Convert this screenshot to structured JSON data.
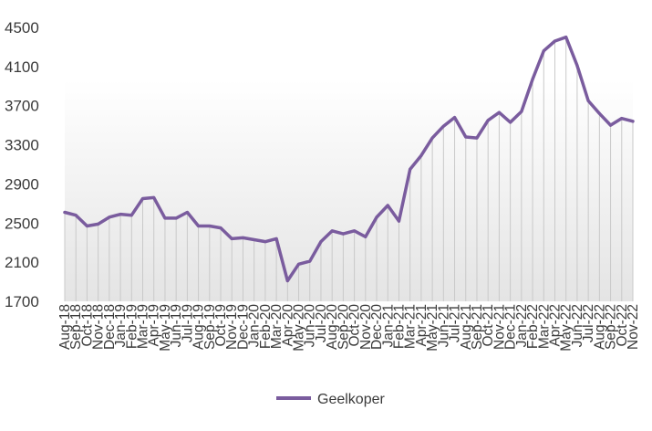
{
  "chart_data": {
    "type": "line",
    "title": "",
    "xlabel": "",
    "ylabel": "",
    "ylim": [
      1700,
      4500
    ],
    "yticks": [
      1700,
      2100,
      2500,
      2900,
      3300,
      3700,
      4100,
      4500
    ],
    "grid": "vertical drop lines from each point; background gradient",
    "legend": "bottom-center",
    "categories": [
      "Aug-18",
      "Sep-18",
      "Oct-18",
      "Nov-18",
      "Dec-18",
      "Jan-19",
      "Feb-19",
      "Mar-19",
      "Apr-19",
      "May-19",
      "Jun-19",
      "Jul-19",
      "Aug-19",
      "Sep-19",
      "Oct-19",
      "Nov-19",
      "Dec-19",
      "Jan-20",
      "Feb-20",
      "Mar-20",
      "Apr-20",
      "May-20",
      "Jun-20",
      "Jul-20",
      "Aug-20",
      "Sep-20",
      "Oct-20",
      "Nov-20",
      "Dec-20",
      "Jan-21",
      "Feb-21",
      "Mar-21",
      "Apr-21",
      "May-21",
      "Jun-21",
      "Jul-21",
      "Aug-21",
      "Sep-21",
      "Oct-21",
      "Nov-21",
      "Dec-21",
      "Jan-22",
      "Feb-22",
      "Mar-22",
      "Apr-22",
      "May-22",
      "Jun-22",
      "Jul-22",
      "Aug-22",
      "Sep-22",
      "Oct-22",
      "Nov-22"
    ],
    "series": [
      {
        "name": "Geelkoper",
        "color": "#7a5c9e",
        "values": [
          2610,
          2580,
          2470,
          2490,
          2560,
          2590,
          2580,
          2750,
          2760,
          2550,
          2550,
          2610,
          2470,
          2470,
          2450,
          2340,
          2350,
          2330,
          2310,
          2340,
          1910,
          2080,
          2110,
          2310,
          2420,
          2390,
          2420,
          2360,
          2560,
          2680,
          2520,
          3050,
          3190,
          3370,
          3490,
          3580,
          3380,
          3370,
          3550,
          3630,
          3530,
          3640,
          3970,
          4260,
          4360,
          4400,
          4110,
          3750,
          3620,
          3500,
          3570,
          3540
        ]
      }
    ]
  }
}
